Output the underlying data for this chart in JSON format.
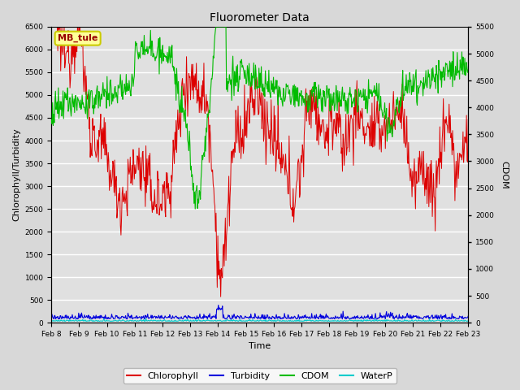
{
  "title": "Fluorometer Data",
  "xlabel": "Time",
  "ylabel_left": "Chlorophyll/Turbidity",
  "ylabel_right": "CDOM",
  "annotation": "MB_tule",
  "x_tick_labels": [
    "Feb 8",
    "Feb 9",
    "Feb 10",
    "Feb 11",
    "Feb 12",
    "Feb 13",
    "Feb 14",
    "Feb 15",
    "Feb 16",
    "Feb 17",
    "Feb 18",
    "Feb 19",
    "Feb 20",
    "Feb 21",
    "Feb 22",
    "Feb 23"
  ],
  "ylim_left": [
    0,
    6500
  ],
  "ylim_right": [
    0,
    5500
  ],
  "fig_bg_color": "#d8d8d8",
  "plot_bg_color": "#e0e0e0",
  "line_colors": {
    "Chlorophyll": "#dd0000",
    "Turbidity": "#0000dd",
    "CDOM": "#00bb00",
    "WaterP": "#00cccc"
  },
  "legend_entries": [
    "Chlorophyll",
    "Turbidity",
    "CDOM",
    "WaterP"
  ],
  "n_points": 720,
  "seed": 12345
}
